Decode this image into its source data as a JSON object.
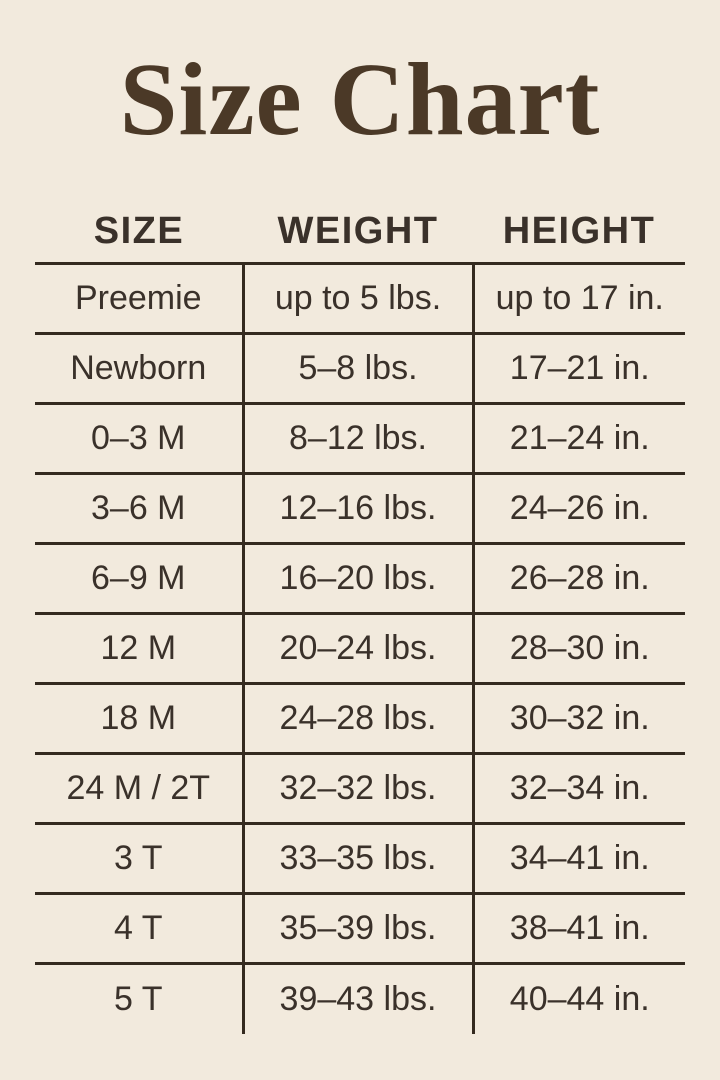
{
  "page": {
    "title": "Size Chart"
  },
  "colors": {
    "background": "#f2eadd",
    "title_text": "#4b3927",
    "table_text": "#3a312a",
    "line": "#342a1f"
  },
  "chart_data": {
    "type": "table",
    "title": "Size Chart",
    "columns": [
      "SIZE",
      "WEIGHT",
      "HEIGHT"
    ],
    "rows": [
      {
        "size": "Preemie",
        "weight": "up to 5 lbs.",
        "height": "up to 17 in."
      },
      {
        "size": "Newborn",
        "weight": "5–8 lbs.",
        "height": "17–21 in."
      },
      {
        "size": "0–3 M",
        "weight": "8–12 lbs.",
        "height": "21–24 in."
      },
      {
        "size": "3–6 M",
        "weight": "12–16 lbs.",
        "height": "24–26 in."
      },
      {
        "size": "6–9 M",
        "weight": "16–20 lbs.",
        "height": "26–28 in."
      },
      {
        "size": "12 M",
        "weight": "20–24 lbs.",
        "height": "28–30 in."
      },
      {
        "size": "18 M",
        "weight": "24–28 lbs.",
        "height": "30–32 in."
      },
      {
        "size": "24 M / 2T",
        "weight": "32–32 lbs.",
        "height": "32–34 in."
      },
      {
        "size": "3 T",
        "weight": "33–35 lbs.",
        "height": "34–41 in."
      },
      {
        "size": "4 T",
        "weight": "35–39 lbs.",
        "height": "38–41 in."
      },
      {
        "size": "5 T",
        "weight": "39–43 lbs.",
        "height": "40–44 in."
      }
    ],
    "layout": {
      "grid": "horizontal rules between rows, vertical dividers between columns, no outer border"
    }
  }
}
